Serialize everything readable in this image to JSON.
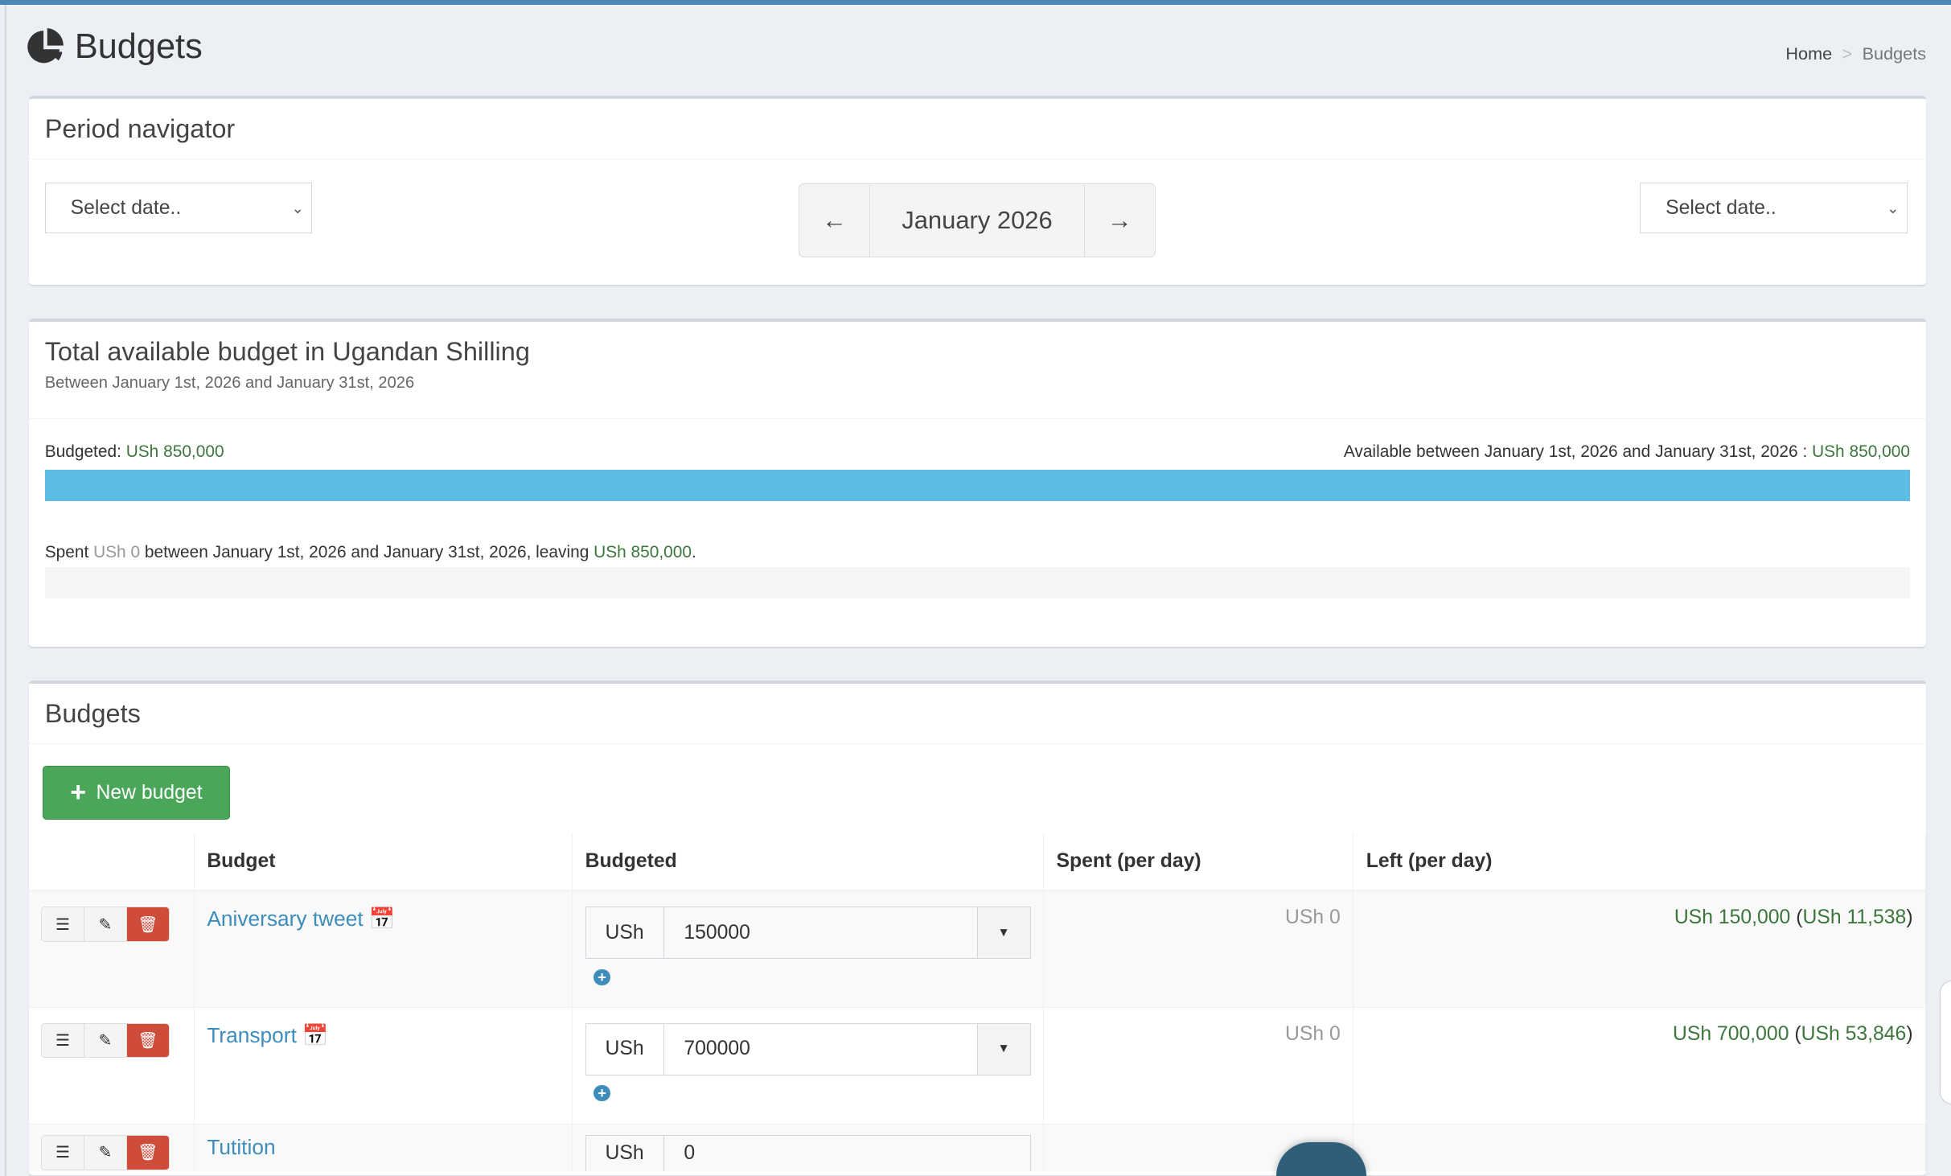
{
  "header": {
    "title": "Budgets",
    "icon": "pie-chart-icon",
    "breadcrumb": [
      "Home",
      "Budgets"
    ]
  },
  "period_navigator": {
    "title": "Period navigator",
    "start_select": "Select date..",
    "end_select": "Select date..",
    "current_period": "January 2026",
    "prev": "←",
    "next": "→"
  },
  "summary": {
    "title": "Total available budget in Ugandan Shilling",
    "subtitle": "Between January 1st, 2026 and January 31st, 2026",
    "budgeted_label": "Budgeted:",
    "budgeted_value": "USh 850,000",
    "available_label": "Available between January 1st, 2026 and January 31st, 2026 :",
    "available_value": "USh 850,000",
    "budget_bar_percent": 100,
    "spent_prefix": "Spent",
    "spent_value": "USh 0",
    "spent_middle": "between January 1st, 2026 and January 31st, 2026, leaving",
    "leaving_value": "USh 850,000",
    "spent_suffix": ".",
    "spent_bar_percent": 0,
    "colors": {
      "budget_bar": "#5bbde6",
      "positive": "#3c763d",
      "muted": "#999999"
    }
  },
  "budgets": {
    "title": "Budgets",
    "new_button": "New budget",
    "columns": [
      "",
      "Budget",
      "Budgeted",
      "Spent (per day)",
      "Left (per day)"
    ],
    "rows": [
      {
        "name": "Aniversary tweet",
        "currency": "USh",
        "amount": "150000",
        "spent": "USh 0",
        "left": "USh 150,000",
        "left_per_day": "USh 11,538",
        "has_calendar": true
      },
      {
        "name": "Transport",
        "currency": "USh",
        "amount": "700000",
        "spent": "USh 0",
        "left": "USh 700,000",
        "left_per_day": "USh 53,846",
        "has_calendar": true
      },
      {
        "name": "Tutition",
        "currency": "USh",
        "amount": "0",
        "spent": "",
        "left": "",
        "left_per_day": "",
        "has_calendar": false
      }
    ]
  }
}
